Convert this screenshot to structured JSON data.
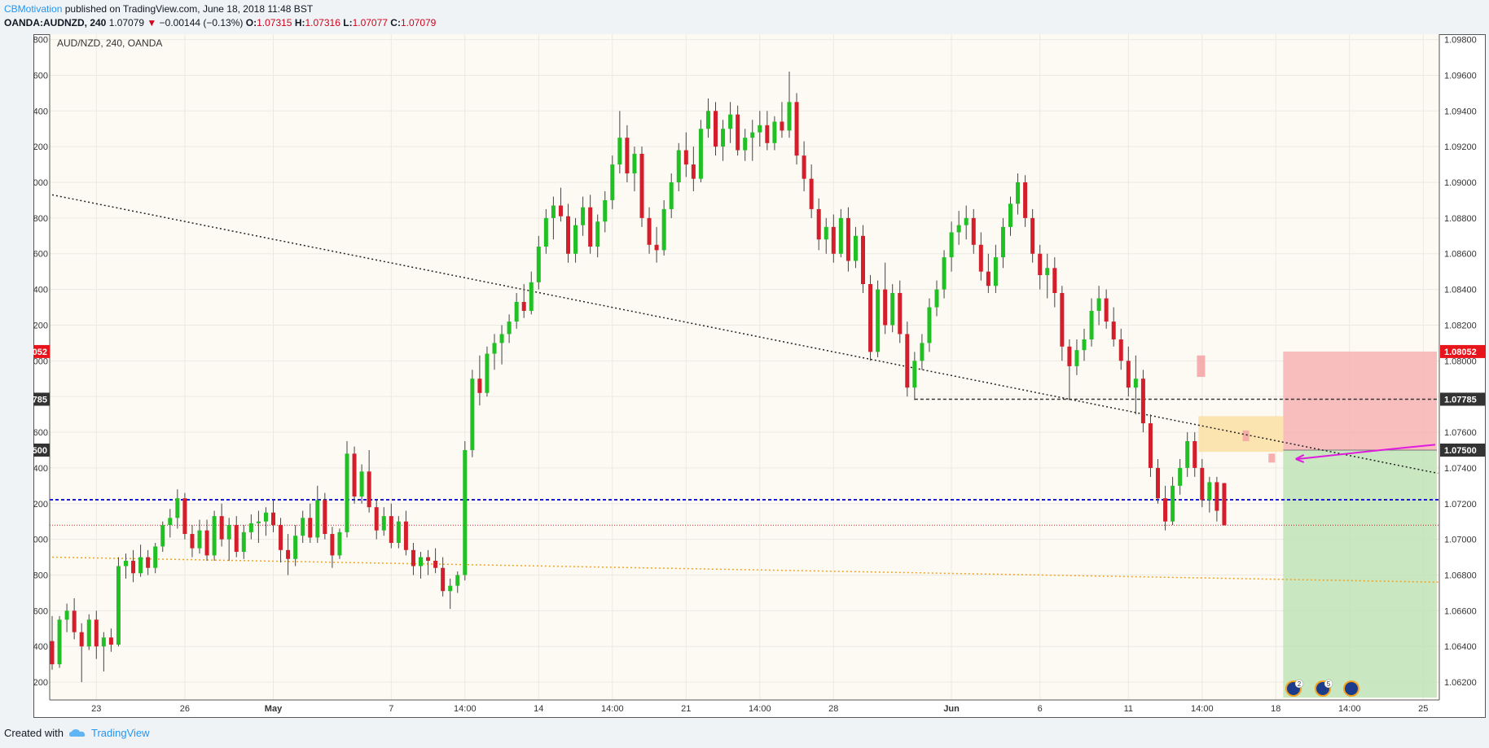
{
  "header": {
    "author": "CBMotivation",
    "published_text": "published on TradingView.com, June 18, 2018 11:48 BST",
    "symbol_line": "OANDA:AUDNZD, 240",
    "last": "1.07079",
    "change": "−0.00144 (−0.13%)",
    "o_label": "O:",
    "o_value": "1.07315",
    "h_label": "H:",
    "h_value": "1.07316",
    "l_label": "L:",
    "l_value": "1.07077",
    "c_label": "C:",
    "c_value": "1.07079"
  },
  "footer": {
    "created_with": "Created with",
    "brand": "TradingView"
  },
  "colors": {
    "up": "#21c024",
    "down": "#d41e2b",
    "stop_zone": "#f7b3b3",
    "target_zone": "#bfe3b6",
    "entry_zone": "#fbe1a8",
    "blue_level": "#1a1ad6",
    "red_level": "#d41e2b",
    "orange_trend": "#f2a21f",
    "arrow": "#e01be0"
  },
  "chart_data": {
    "type": "candlestick",
    "title": "AUD/NZD, 240, OANDA",
    "ylim": [
      1.061,
      1.0983
    ],
    "y_ticks": [
      "1.06200",
      "1.06400",
      "1.06600",
      "1.06800",
      "1.07000",
      "1.07200",
      "1.07400",
      "1.07600",
      "1.07800",
      "1.08000",
      "1.08200",
      "1.08400",
      "1.08600",
      "1.08800",
      "1.09000",
      "1.09200",
      "1.09400",
      "1.09600",
      "1.09800"
    ],
    "x_ticks": [
      {
        "label": "23",
        "i": 6
      },
      {
        "label": "26",
        "i": 18
      },
      {
        "label": "May",
        "i": 30,
        "bold": true
      },
      {
        "label": "7",
        "i": 46
      },
      {
        "label": "14:00",
        "i": 56
      },
      {
        "label": "14",
        "i": 66
      },
      {
        "label": "14:00",
        "i": 76
      },
      {
        "label": "21",
        "i": 86
      },
      {
        "label": "14:00",
        "i": 96
      },
      {
        "label": "28",
        "i": 106
      },
      {
        "label": "Jun",
        "i": 122,
        "bold": true
      },
      {
        "label": "6",
        "i": 134
      },
      {
        "label": "11",
        "i": 146
      },
      {
        "label": "14:00",
        "i": 156
      },
      {
        "label": "18",
        "i": 166
      },
      {
        "label": "14:00",
        "i": 176
      },
      {
        "label": "25",
        "i": 186
      }
    ],
    "price_labels": [
      {
        "value": "1.08052",
        "price": 1.08052,
        "bg": "#e8141c"
      },
      {
        "value": "1.07785",
        "price": 1.07785,
        "bg": "#333333"
      },
      {
        "value": "1.07500",
        "price": 1.075,
        "bg": "#333333"
      }
    ],
    "levels": [
      {
        "price": 1.07222,
        "style": "blue-dotted"
      },
      {
        "price": 1.07079,
        "style": "red-dotted"
      },
      {
        "price": 1.07785,
        "style": "black-dashed",
        "from_i": 117,
        "to_i": 188
      }
    ],
    "trendlines": [
      {
        "from": [
          0,
          1.0893
        ],
        "to": [
          188,
          1.0737
        ],
        "style": "black-dotted"
      },
      {
        "from": [
          0,
          1.069
        ],
        "to": [
          188,
          1.0676
        ],
        "style": "orange-dotted"
      }
    ],
    "position": {
      "entry": 1.075,
      "stop": 1.08052,
      "target": 1.061,
      "from_i": 167,
      "to_i": 188
    },
    "candles": [
      [
        1.0643,
        1.0657,
        1.0627,
        1.063
      ],
      [
        1.063,
        1.0657,
        1.0628,
        1.0655
      ],
      [
        1.0655,
        1.0664,
        1.0648,
        1.066
      ],
      [
        1.066,
        1.0667,
        1.0644,
        1.0648
      ],
      [
        1.0648,
        1.0653,
        1.062,
        1.064
      ],
      [
        1.064,
        1.0658,
        1.0638,
        1.0655
      ],
      [
        1.0655,
        1.066,
        1.0633,
        1.064
      ],
      [
        1.064,
        1.0648,
        1.0626,
        1.0645
      ],
      [
        1.0645,
        1.065,
        1.0637,
        1.0641
      ],
      [
        1.0641,
        1.069,
        1.064,
        1.0685
      ],
      [
        1.0685,
        1.0692,
        1.0678,
        1.0688
      ],
      [
        1.0688,
        1.0694,
        1.0676,
        1.0681
      ],
      [
        1.0681,
        1.0697,
        1.0679,
        1.069
      ],
      [
        1.069,
        1.0694,
        1.068,
        1.0684
      ],
      [
        1.0684,
        1.0698,
        1.0681,
        1.0696
      ],
      [
        1.0696,
        1.071,
        1.0693,
        1.0708
      ],
      [
        1.0708,
        1.0717,
        1.0701,
        1.0712
      ],
      [
        1.0712,
        1.0728,
        1.0706,
        1.0723
      ],
      [
        1.0723,
        1.0726,
        1.07,
        1.0703
      ],
      [
        1.0703,
        1.0708,
        1.069,
        1.0695
      ],
      [
        1.0695,
        1.0711,
        1.0692,
        1.0705
      ],
      [
        1.0705,
        1.0711,
        1.0688,
        1.0691
      ],
      [
        1.0691,
        1.0716,
        1.0688,
        1.0713
      ],
      [
        1.0713,
        1.072,
        1.0696,
        1.07
      ],
      [
        1.07,
        1.0712,
        1.0688,
        1.0708
      ],
      [
        1.0708,
        1.0713,
        1.069,
        1.0693
      ],
      [
        1.0693,
        1.0708,
        1.0689,
        1.0704
      ],
      [
        1.0704,
        1.0714,
        1.07,
        1.0709
      ],
      [
        1.0709,
        1.0716,
        1.0698,
        1.071
      ],
      [
        1.071,
        1.0718,
        1.0702,
        1.0715
      ],
      [
        1.0715,
        1.0722,
        1.0704,
        1.0708
      ],
      [
        1.0708,
        1.0712,
        1.0687,
        1.0694
      ],
      [
        1.0694,
        1.0703,
        1.068,
        1.0689
      ],
      [
        1.0689,
        1.0708,
        1.0685,
        1.0702
      ],
      [
        1.0702,
        1.0716,
        1.0698,
        1.0712
      ],
      [
        1.0712,
        1.072,
        1.0698,
        1.0701
      ],
      [
        1.0701,
        1.073,
        1.0698,
        1.0722
      ],
      [
        1.0722,
        1.0726,
        1.07,
        1.0703
      ],
      [
        1.0703,
        1.0707,
        1.0684,
        1.0691
      ],
      [
        1.0691,
        1.0706,
        1.0689,
        1.0704
      ],
      [
        1.0704,
        1.0755,
        1.0701,
        1.0748
      ],
      [
        1.0748,
        1.0752,
        1.072,
        1.0724
      ],
      [
        1.0724,
        1.0742,
        1.072,
        1.0738
      ],
      [
        1.0738,
        1.075,
        1.0715,
        1.0718
      ],
      [
        1.0718,
        1.0722,
        1.07,
        1.0705
      ],
      [
        1.0705,
        1.0718,
        1.0702,
        1.0713
      ],
      [
        1.0713,
        1.072,
        1.0695,
        1.0698
      ],
      [
        1.0698,
        1.0713,
        1.0695,
        1.071
      ],
      [
        1.071,
        1.0716,
        1.0691,
        1.0694
      ],
      [
        1.0694,
        1.0698,
        1.068,
        1.0685
      ],
      [
        1.0685,
        1.0693,
        1.0678,
        1.069
      ],
      [
        1.069,
        1.0694,
        1.068,
        1.0688
      ],
      [
        1.0688,
        1.0695,
        1.0681,
        1.0684
      ],
      [
        1.0684,
        1.069,
        1.0668,
        1.0671
      ],
      [
        1.0671,
        1.0678,
        1.0661,
        1.0674
      ],
      [
        1.0674,
        1.0682,
        1.067,
        1.068
      ],
      [
        1.068,
        1.0755,
        1.0677,
        1.075
      ],
      [
        1.075,
        1.0795,
        1.0746,
        1.079
      ],
      [
        1.079,
        1.0803,
        1.0775,
        1.0782
      ],
      [
        1.0782,
        1.0808,
        1.078,
        1.0804
      ],
      [
        1.0804,
        1.0815,
        1.0795,
        1.081
      ],
      [
        1.081,
        1.082,
        1.0798,
        1.0815
      ],
      [
        1.0815,
        1.0826,
        1.081,
        1.0822
      ],
      [
        1.0822,
        1.0838,
        1.0818,
        1.0833
      ],
      [
        1.0833,
        1.0843,
        1.0824,
        1.0828
      ],
      [
        1.0828,
        1.085,
        1.0826,
        1.0844
      ],
      [
        1.0844,
        1.087,
        1.084,
        1.0864
      ],
      [
        1.0864,
        1.0885,
        1.086,
        1.088
      ],
      [
        1.088,
        1.0892,
        1.0868,
        1.0887
      ],
      [
        1.0887,
        1.0897,
        1.0878,
        1.0881
      ],
      [
        1.0881,
        1.0888,
        1.0855,
        1.086
      ],
      [
        1.086,
        1.088,
        1.0855,
        1.0876
      ],
      [
        1.0876,
        1.0892,
        1.087,
        1.0886
      ],
      [
        1.0886,
        1.0893,
        1.086,
        1.0864
      ],
      [
        1.0864,
        1.0882,
        1.0858,
        1.0878
      ],
      [
        1.0878,
        1.0895,
        1.0872,
        1.089
      ],
      [
        1.089,
        1.0915,
        1.0885,
        1.091
      ],
      [
        1.091,
        1.094,
        1.0905,
        1.0925
      ],
      [
        1.0925,
        1.0932,
        1.09,
        1.0905
      ],
      [
        1.0905,
        1.092,
        1.0895,
        1.0916
      ],
      [
        1.0916,
        1.092,
        1.0875,
        1.088
      ],
      [
        1.088,
        1.0886,
        1.086,
        1.0865
      ],
      [
        1.0865,
        1.0875,
        1.0855,
        1.0862
      ],
      [
        1.0862,
        1.089,
        1.0859,
        1.0885
      ],
      [
        1.0885,
        1.0905,
        1.088,
        1.09
      ],
      [
        1.09,
        1.0922,
        1.0895,
        1.0918
      ],
      [
        1.0918,
        1.0928,
        1.0903,
        1.091
      ],
      [
        1.091,
        1.092,
        1.0895,
        1.0902
      ],
      [
        1.0902,
        1.0935,
        1.09,
        1.093
      ],
      [
        1.093,
        1.0947,
        1.0925,
        1.094
      ],
      [
        1.094,
        1.0945,
        1.0915,
        1.092
      ],
      [
        1.092,
        1.0935,
        1.0912,
        1.093
      ],
      [
        1.093,
        1.0945,
        1.0922,
        1.0938
      ],
      [
        1.0938,
        1.0943,
        1.0915,
        1.0918
      ],
      [
        1.0918,
        1.093,
        1.0912,
        1.0925
      ],
      [
        1.0925,
        1.0935,
        1.0912,
        1.0928
      ],
      [
        1.0928,
        1.094,
        1.092,
        1.0932
      ],
      [
        1.0932,
        1.094,
        1.0918,
        1.0922
      ],
      [
        1.0922,
        1.0937,
        1.0918,
        1.0934
      ],
      [
        1.0934,
        1.0945,
        1.0925,
        1.0929
      ],
      [
        1.0929,
        1.0962,
        1.0925,
        1.0945
      ],
      [
        1.0945,
        1.095,
        1.091,
        1.0915
      ],
      [
        1.0915,
        1.0923,
        1.0895,
        1.0902
      ],
      [
        1.0902,
        1.091,
        1.088,
        1.0885
      ],
      [
        1.0885,
        1.0891,
        1.0862,
        1.0868
      ],
      [
        1.0868,
        1.088,
        1.086,
        1.0875
      ],
      [
        1.0875,
        1.0882,
        1.0855,
        1.086
      ],
      [
        1.086,
        1.0885,
        1.0858,
        1.088
      ],
      [
        1.088,
        1.0886,
        1.085,
        1.0856
      ],
      [
        1.0856,
        1.0875,
        1.0852,
        1.087
      ],
      [
        1.087,
        1.0876,
        1.0838,
        1.0843
      ],
      [
        1.0843,
        1.0848,
        1.08,
        1.0805
      ],
      [
        1.0805,
        1.0845,
        1.0802,
        1.084
      ],
      [
        1.084,
        1.0855,
        1.0815,
        1.082
      ],
      [
        1.082,
        1.0843,
        1.0816,
        1.0838
      ],
      [
        1.0838,
        1.0845,
        1.081,
        1.0815
      ],
      [
        1.0815,
        1.0822,
        1.078,
        1.0785
      ],
      [
        1.0785,
        1.0805,
        1.0778,
        1.08
      ],
      [
        1.08,
        1.0815,
        1.0795,
        1.081
      ],
      [
        1.081,
        1.0835,
        1.0805,
        1.083
      ],
      [
        1.083,
        1.0845,
        1.0825,
        1.084
      ],
      [
        1.084,
        1.0862,
        1.0835,
        1.0858
      ],
      [
        1.0858,
        1.0878,
        1.085,
        1.0872
      ],
      [
        1.0872,
        1.0884,
        1.0865,
        1.0876
      ],
      [
        1.0876,
        1.0887,
        1.0868,
        1.088
      ],
      [
        1.088,
        1.0885,
        1.086,
        1.0865
      ],
      [
        1.0865,
        1.0872,
        1.0845,
        1.085
      ],
      [
        1.085,
        1.086,
        1.0838,
        1.0842
      ],
      [
        1.0842,
        1.0865,
        1.0838,
        1.0858
      ],
      [
        1.0858,
        1.088,
        1.0852,
        1.0875
      ],
      [
        1.0875,
        1.0892,
        1.087,
        1.0888
      ],
      [
        1.0888,
        1.0905,
        1.0882,
        1.09
      ],
      [
        1.09,
        1.0904,
        1.0875,
        1.088
      ],
      [
        1.088,
        1.0885,
        1.0855,
        1.086
      ],
      [
        1.086,
        1.0865,
        1.084,
        1.0848
      ],
      [
        1.0848,
        1.086,
        1.0835,
        1.0852
      ],
      [
        1.0852,
        1.0858,
        1.083,
        1.0838
      ],
      [
        1.0838,
        1.0842,
        1.08,
        1.0808
      ],
      [
        1.0808,
        1.0812,
        1.0778,
        1.0797
      ],
      [
        1.0797,
        1.0812,
        1.0792,
        1.0806
      ],
      [
        1.0806,
        1.0818,
        1.08,
        1.0812
      ],
      [
        1.0812,
        1.0835,
        1.0808,
        1.0828
      ],
      [
        1.0828,
        1.0842,
        1.082,
        1.0835
      ],
      [
        1.0835,
        1.084,
        1.0818,
        1.0822
      ],
      [
        1.0822,
        1.083,
        1.0808,
        1.0812
      ],
      [
        1.0812,
        1.0818,
        1.0795,
        1.08
      ],
      [
        1.08,
        1.0808,
        1.078,
        1.0785
      ],
      [
        1.0785,
        1.0803,
        1.077,
        1.079
      ],
      [
        1.079,
        1.0795,
        1.076,
        1.0765
      ],
      [
        1.0765,
        1.077,
        1.0735,
        1.074
      ],
      [
        1.074,
        1.0745,
        1.072,
        1.0723
      ],
      [
        1.0723,
        1.073,
        1.0705,
        1.071
      ],
      [
        1.071,
        1.0735,
        1.0708,
        1.073
      ],
      [
        1.073,
        1.0745,
        1.0725,
        1.074
      ],
      [
        1.074,
        1.076,
        1.0735,
        1.0755
      ],
      [
        1.0755,
        1.076,
        1.0735,
        1.074
      ],
      [
        1.074,
        1.0745,
        1.0718,
        1.0722
      ],
      [
        1.0722,
        1.0735,
        1.0715,
        1.0732
      ],
      [
        1.0732,
        1.0735,
        1.071,
        1.0716
      ],
      [
        1.07315,
        1.07316,
        1.07077,
        1.07079
      ]
    ]
  }
}
